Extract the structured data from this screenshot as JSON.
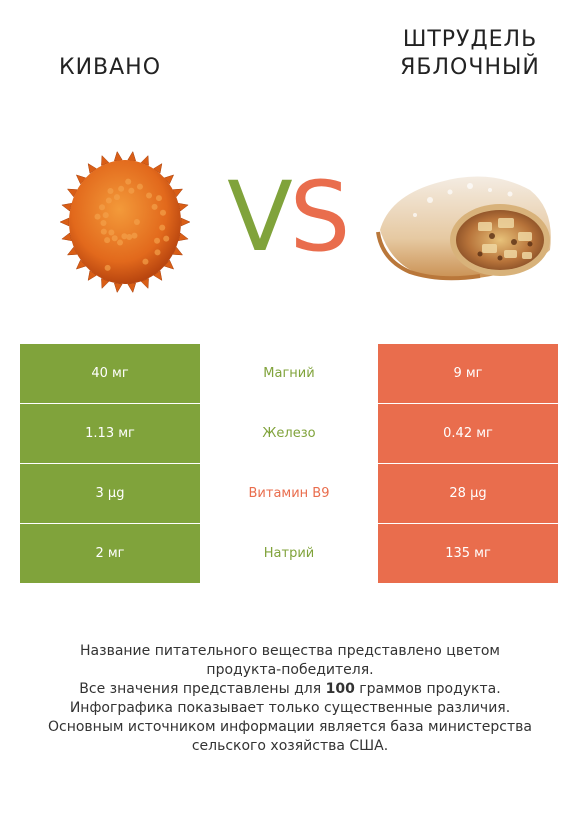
{
  "header": {
    "left_title": "КИВАНО",
    "right_title_line1": "ШТРУДЕЛЬ",
    "right_title_line2": "ЯБЛОЧНЫЙ",
    "vs_v": "V",
    "vs_s": "S"
  },
  "colors": {
    "left_winner": "#80a33b",
    "right_winner": "#e96d4d",
    "text": "#333333"
  },
  "icons": [
    "kiwano-fruit-picture",
    "apple-strudel-picture"
  ],
  "rows": [
    {
      "left": "40 мг",
      "nutrient": "Магний",
      "right": "9 мг",
      "winner": "left",
      "winner_color": "#80a33b"
    },
    {
      "left": "1.13 мг",
      "nutrient": "Железо",
      "right": "0.42 мг",
      "winner": "left",
      "winner_color": "#80a33b"
    },
    {
      "left": "3 µg",
      "nutrient": "Витамин B9",
      "right": "28 µg",
      "winner": "right",
      "winner_color": "#e96d4d"
    },
    {
      "left": "2 мг",
      "nutrient": "Натрий",
      "right": "135 мг",
      "winner": "left",
      "winner_color": "#80a33b"
    }
  ],
  "footer": {
    "line1": "Название питательного вещества представлено цветом",
    "line2": "продукта-победителя.",
    "line3_before": "Все значения представлены для ",
    "line3_bold": "100",
    "line3_after": " граммов продукта.",
    "line4": "Инфографика показывает только существенные различия.",
    "line5": "Основным источником информации является база министерства",
    "line6": "сельского хозяйства США."
  }
}
